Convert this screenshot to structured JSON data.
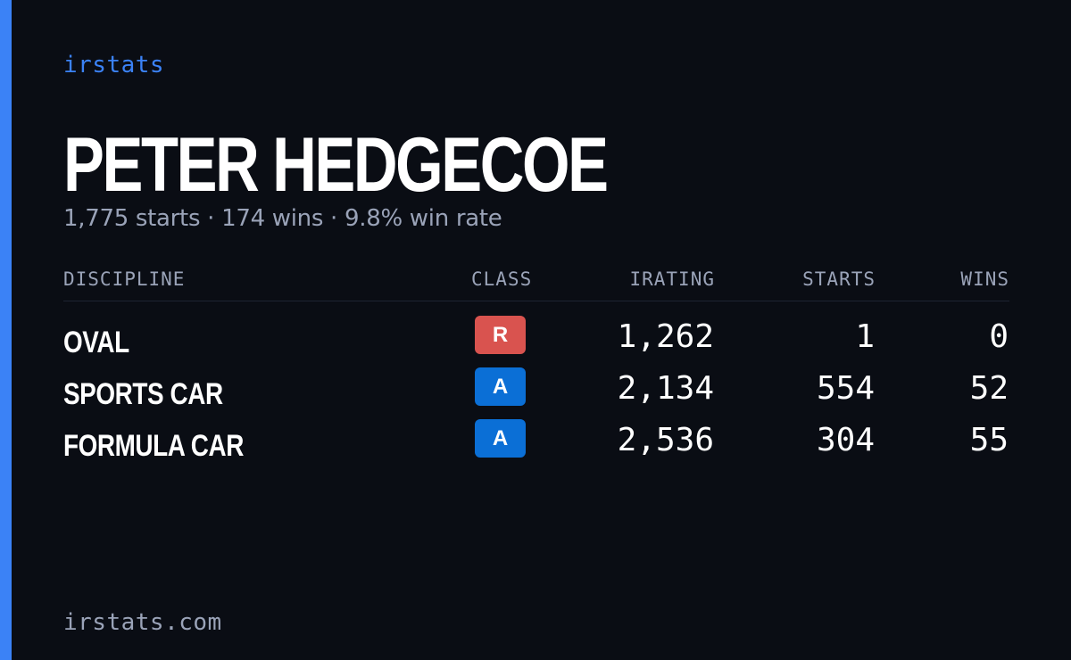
{
  "brand": "irstats",
  "driver": {
    "name": "PETER HEDGECOE",
    "summary": "1,775 starts · 174 wins · 9.8% win rate"
  },
  "table": {
    "headers": {
      "discipline": "DISCIPLINE",
      "class": "CLASS",
      "irating": "IRATING",
      "starts": "STARTS",
      "wins": "WINS"
    },
    "rows": [
      {
        "discipline": "OVAL",
        "class": "R",
        "class_color": "#d9534f",
        "irating": "1,262",
        "starts": "1",
        "wins": "0"
      },
      {
        "discipline": "SPORTS CAR",
        "class": "A",
        "class_color": "#0b6fd6",
        "irating": "2,134",
        "starts": "554",
        "wins": "52"
      },
      {
        "discipline": "FORMULA CAR",
        "class": "A",
        "class_color": "#0b6fd6",
        "irating": "2,536",
        "starts": "304",
        "wins": "55"
      }
    ]
  },
  "footer": "irstats.com",
  "colors": {
    "background": "#0a0d14",
    "accent": "#3b82f6",
    "muted_text": "#9aa3b8",
    "class_r": "#d9534f",
    "class_a": "#0b6fd6"
  }
}
